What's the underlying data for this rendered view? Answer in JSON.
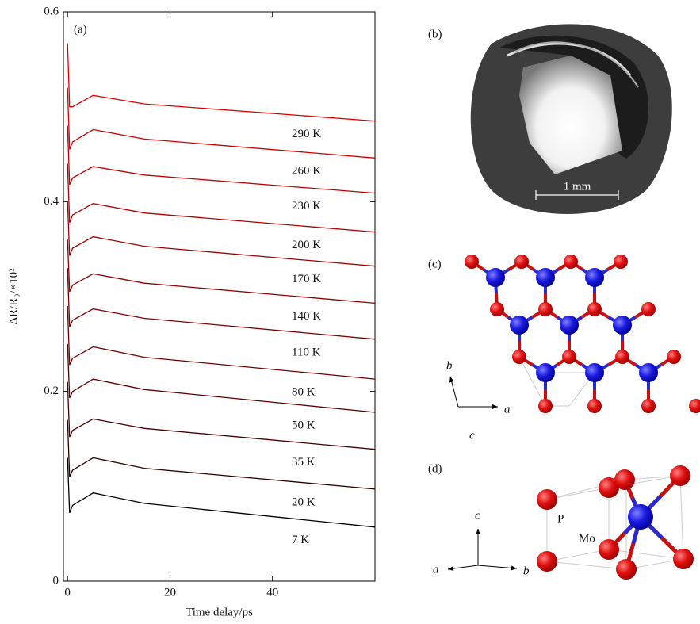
{
  "chart_data": {
    "type": "line",
    "ylabel": "ΔR/R₀/×10²",
    "xlabel": "Time delay/ps",
    "panel_label": "(a)",
    "x": [
      0,
      0.4,
      1,
      5,
      15,
      60
    ],
    "xlim": [
      -0.8,
      60
    ],
    "ylim": [
      0,
      0.6
    ],
    "xticks": [
      0,
      20,
      40
    ],
    "yticks": [
      0,
      0.2,
      0.4,
      0.6
    ],
    "series": [
      {
        "name": "290 K",
        "color": "#e00000",
        "values": [
          0.567,
          0.5,
          0.5,
          0.512,
          0.503,
          0.485
        ]
      },
      {
        "name": "260 K",
        "color": "#d00000",
        "values": [
          0.52,
          0.455,
          0.463,
          0.476,
          0.466,
          0.446
        ]
      },
      {
        "name": "230 K",
        "color": "#c00000",
        "values": [
          0.48,
          0.418,
          0.425,
          0.437,
          0.428,
          0.409
        ]
      },
      {
        "name": "200 K",
        "color": "#b00000",
        "values": [
          0.44,
          0.378,
          0.386,
          0.398,
          0.388,
          0.368
        ]
      },
      {
        "name": "170 K",
        "color": "#a00000",
        "values": [
          0.4,
          0.343,
          0.351,
          0.363,
          0.353,
          0.332
        ]
      },
      {
        "name": "140 K",
        "color": "#900000",
        "values": [
          0.36,
          0.305,
          0.312,
          0.324,
          0.314,
          0.293
        ]
      },
      {
        "name": "110 K",
        "color": "#800000",
        "values": [
          0.33,
          0.268,
          0.275,
          0.287,
          0.277,
          0.255
        ]
      },
      {
        "name": "80 K",
        "color": "#700000",
        "values": [
          0.29,
          0.228,
          0.235,
          0.247,
          0.236,
          0.213
        ]
      },
      {
        "name": "50 K",
        "color": "#600000",
        "values": [
          0.25,
          0.193,
          0.2,
          0.213,
          0.202,
          0.178
        ]
      },
      {
        "name": "35 K",
        "color": "#480000",
        "values": [
          0.21,
          0.152,
          0.159,
          0.171,
          0.161,
          0.139
        ]
      },
      {
        "name": "20 K",
        "color": "#300000",
        "values": [
          0.17,
          0.11,
          0.117,
          0.13,
          0.119,
          0.097
        ]
      },
      {
        "name": "7 K",
        "color": "#000000",
        "values": [
          0.13,
          0.072,
          0.08,
          0.093,
          0.082,
          0.057
        ]
      }
    ]
  },
  "panels": {
    "b": {
      "label": "(b)",
      "scale_bar": "1 mm"
    },
    "c": {
      "label": "(c)",
      "axes": [
        "a",
        "b",
        "c"
      ]
    },
    "d": {
      "label": "(d)",
      "atoms": [
        "P",
        "Mo"
      ],
      "axes": [
        "a",
        "b",
        "c"
      ]
    }
  }
}
